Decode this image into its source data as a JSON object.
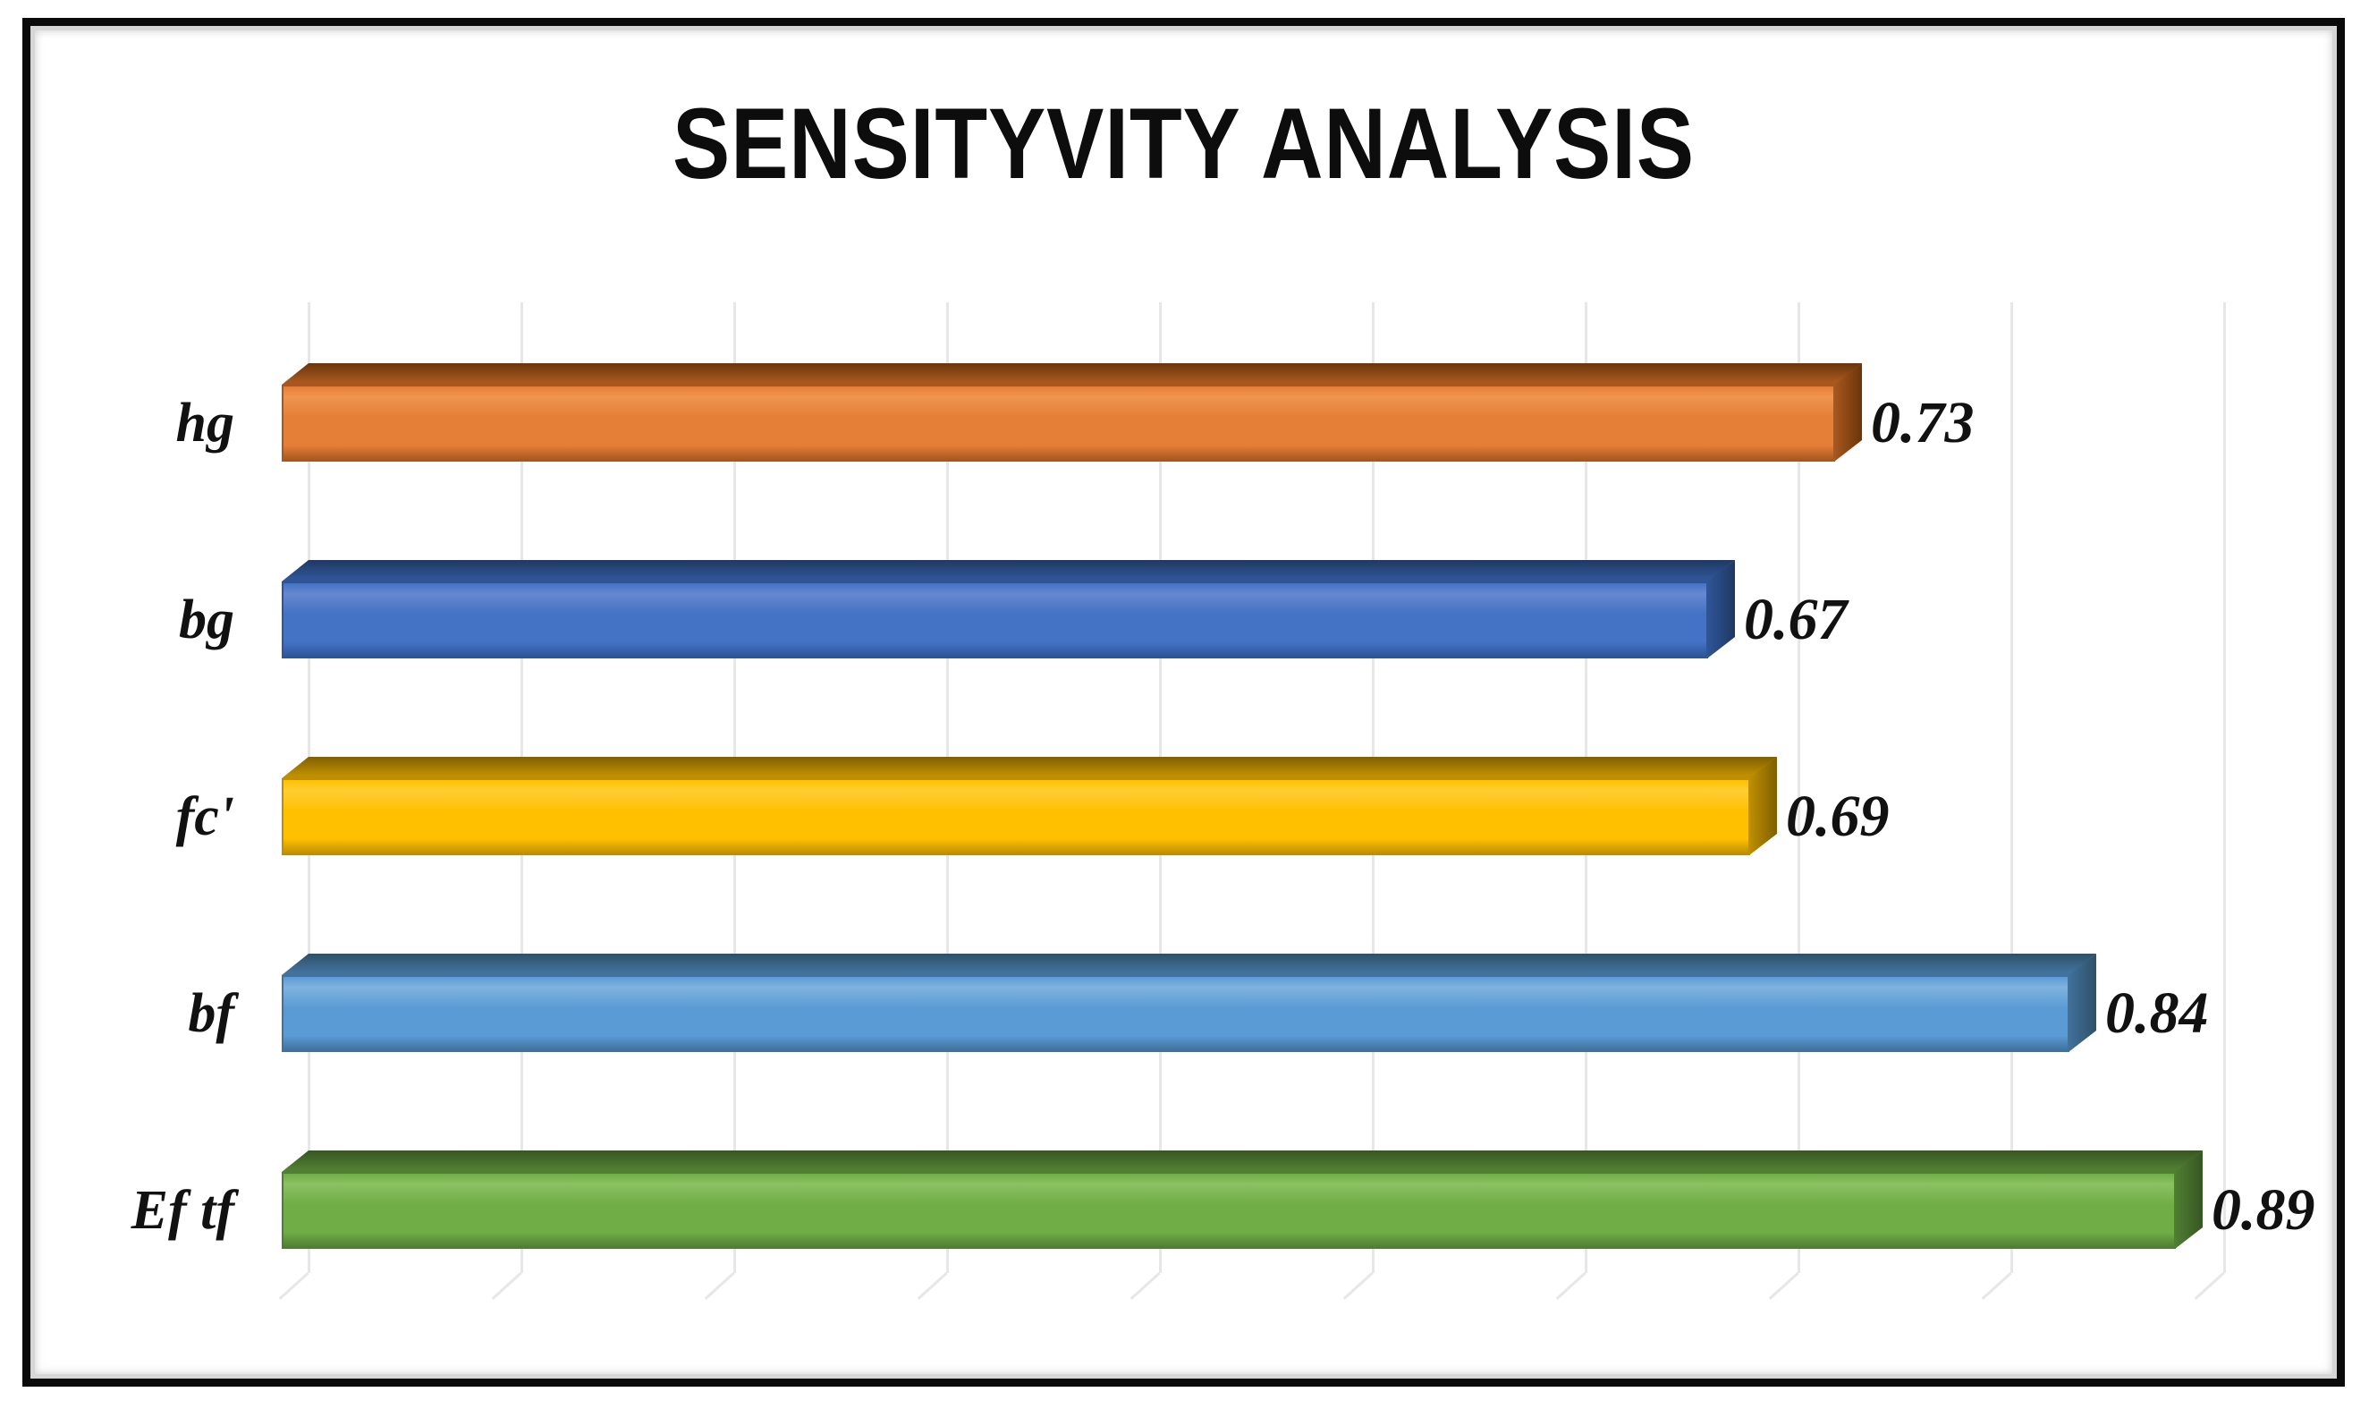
{
  "title": "SENSITYVITY ANALYSIS",
  "chart_data": {
    "type": "bar",
    "orientation": "horizontal",
    "title": "SENSITYVITY ANALYSIS",
    "xlabel": "",
    "ylabel": "",
    "categories": [
      "hg",
      "bg",
      "fc'",
      "bf",
      "Ef tf"
    ],
    "values": [
      0.73,
      0.67,
      0.69,
      0.84,
      0.89
    ],
    "value_labels": [
      "0.73",
      "0.67",
      "0.69",
      "0.84",
      "0.89"
    ],
    "xlim": [
      0,
      0.9
    ],
    "gridline_interval": 0.1,
    "grid": true,
    "legend": false,
    "style": "3d",
    "bar_colors": [
      {
        "name": "orange",
        "light": "#ef9550",
        "front": "#e57e37",
        "mid": "#a8581f",
        "dark": "#6b3409"
      },
      {
        "name": "dark-blue",
        "light": "#6688d0",
        "front": "#4472c4",
        "mid": "#2f5597",
        "dark": "#1f3864"
      },
      {
        "name": "gold",
        "light": "#ffce33",
        "front": "#ffc000",
        "mid": "#bf8f00",
        "dark": "#7f5f00"
      },
      {
        "name": "light-blue",
        "light": "#7fb2df",
        "front": "#5b9bd5",
        "mid": "#41719c",
        "dark": "#2e5068"
      },
      {
        "name": "green",
        "light": "#8bc162",
        "front": "#70ad47",
        "mid": "#507e32",
        "dark": "#375623"
      }
    ],
    "gridline_color": "#e7e7e7",
    "frame_color": "#0a0a0a",
    "background_color": "#ffffff",
    "text_color": "#111111"
  }
}
